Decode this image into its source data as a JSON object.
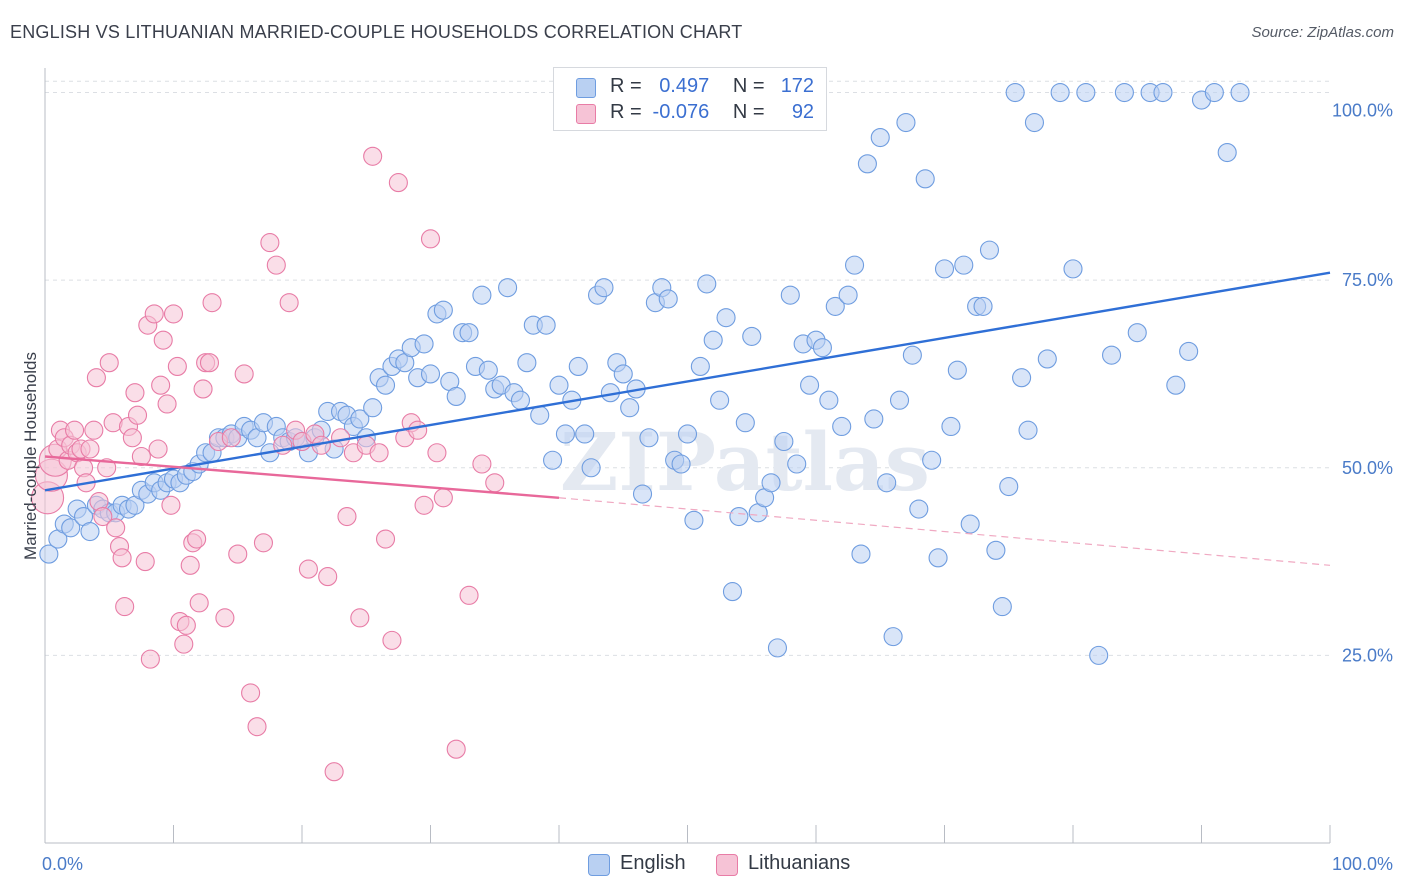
{
  "title": "ENGLISH VS LITHUANIAN MARRIED-COUPLE HOUSEHOLDS CORRELATION CHART",
  "source": "Source: ZipAtlas.com",
  "colors": {
    "english": "#6f9de0",
    "english_fill": "#b9d0f2",
    "lithuanian": "#e87ca6",
    "lithuanian_fill": "#f6c3d6",
    "tick_text": "#4a7bc8"
  },
  "legend": {
    "r_label": "R =",
    "n_label": "N =",
    "rows": [
      {
        "key": "english",
        "r": "0.497",
        "n": "172"
      },
      {
        "key": "lithuanian",
        "r": "-0.076",
        "n": "92"
      }
    ]
  },
  "bottom_legend": {
    "english": "English",
    "lithuanian": "Lithuanians"
  },
  "chart_data": {
    "type": "scatter",
    "ylabel": "Married-couple Households",
    "xlim": [
      0,
      100
    ],
    "ylim": [
      0,
      103
    ],
    "x_tick_labels": [
      "0.0%",
      "100.0%"
    ],
    "y_ticks": [
      25,
      50,
      75,
      100
    ],
    "y_tick_labels": [
      "25.0%",
      "50.0%",
      "75.0%",
      "100.0%"
    ],
    "grid": true,
    "watermark": "ZIPatlas",
    "trend_lines": [
      {
        "series": "English",
        "x": [
          0,
          100
        ],
        "y": [
          47.0,
          76.0
        ],
        "style": "solid"
      },
      {
        "series": "Lithuanians",
        "x": [
          0,
          40
        ],
        "y": [
          51.5,
          46.0
        ],
        "style": "solid"
      },
      {
        "series": "Lithuanians",
        "x": [
          40,
          100
        ],
        "y": [
          46.0,
          37.0
        ],
        "style": "dashed"
      }
    ],
    "series": [
      {
        "name": "English",
        "points": [
          [
            0.3,
            38.5
          ],
          [
            1,
            40.5
          ],
          [
            1.5,
            42.5
          ],
          [
            2,
            42
          ],
          [
            2.5,
            44.5
          ],
          [
            3,
            43.5
          ],
          [
            3.5,
            41.5
          ],
          [
            4,
            45
          ],
          [
            4.5,
            44.5
          ],
          [
            5,
            44
          ],
          [
            5.5,
            44
          ],
          [
            6,
            45
          ],
          [
            6.5,
            44.5
          ],
          [
            7,
            45
          ],
          [
            7.5,
            47
          ],
          [
            8,
            46.5
          ],
          [
            8.5,
            48
          ],
          [
            9,
            47
          ],
          [
            9.5,
            48
          ],
          [
            10,
            48.5
          ],
          [
            10.5,
            48
          ],
          [
            11,
            49
          ],
          [
            11.5,
            49.5
          ],
          [
            12,
            50.5
          ],
          [
            12.5,
            52
          ],
          [
            13,
            52
          ],
          [
            13.5,
            54
          ],
          [
            14,
            54
          ],
          [
            14.5,
            54.5
          ],
          [
            15,
            54
          ],
          [
            15.5,
            55.5
          ],
          [
            16,
            55
          ],
          [
            16.5,
            54
          ],
          [
            17,
            56
          ],
          [
            17.5,
            52
          ],
          [
            18,
            55.5
          ],
          [
            18.5,
            54
          ],
          [
            19,
            53.5
          ],
          [
            19.5,
            54
          ],
          [
            20,
            53.5
          ],
          [
            20.5,
            52
          ],
          [
            21,
            54
          ],
          [
            21.5,
            55
          ],
          [
            22,
            57.5
          ],
          [
            22.5,
            52.5
          ],
          [
            23,
            57.5
          ],
          [
            23.5,
            57
          ],
          [
            24,
            55.5
          ],
          [
            24.5,
            56.5
          ],
          [
            25,
            54
          ],
          [
            25.5,
            58
          ],
          [
            26,
            62
          ],
          [
            26.5,
            61
          ],
          [
            27,
            63.5
          ],
          [
            27.5,
            64.5
          ],
          [
            28,
            64
          ],
          [
            28.5,
            66
          ],
          [
            29,
            62
          ],
          [
            29.5,
            66.5
          ],
          [
            30,
            62.5
          ],
          [
            30.5,
            70.5
          ],
          [
            31,
            71
          ],
          [
            31.5,
            61.5
          ],
          [
            32,
            59.5
          ],
          [
            32.5,
            68
          ],
          [
            33,
            68
          ],
          [
            33.5,
            63.5
          ],
          [
            34,
            73
          ],
          [
            34.5,
            63
          ],
          [
            35,
            60.5
          ],
          [
            35.5,
            61
          ],
          [
            36,
            74
          ],
          [
            36.5,
            60
          ],
          [
            37,
            59
          ],
          [
            37.5,
            64
          ],
          [
            38,
            69
          ],
          [
            38.5,
            57
          ],
          [
            39,
            69
          ],
          [
            39.5,
            51
          ],
          [
            40,
            61
          ],
          [
            40.5,
            54.5
          ],
          [
            41,
            59
          ],
          [
            41.5,
            63.5
          ],
          [
            42,
            54.5
          ],
          [
            42.5,
            50
          ],
          [
            43,
            73
          ],
          [
            43.5,
            74
          ],
          [
            44,
            60
          ],
          [
            44.5,
            64
          ],
          [
            45,
            62.5
          ],
          [
            45.5,
            58
          ],
          [
            46,
            60.5
          ],
          [
            46.5,
            46.5
          ],
          [
            47,
            54
          ],
          [
            47.5,
            72
          ],
          [
            48,
            74
          ],
          [
            48.5,
            72.5
          ],
          [
            49,
            51
          ],
          [
            49.5,
            50.5
          ],
          [
            50,
            54.5
          ],
          [
            50.5,
            43
          ],
          [
            51,
            63.5
          ],
          [
            51.5,
            74.5
          ],
          [
            52,
            67
          ],
          [
            52.5,
            59
          ],
          [
            53,
            70
          ],
          [
            53.5,
            33.5
          ],
          [
            54,
            43.5
          ],
          [
            54.5,
            56
          ],
          [
            55,
            67.5
          ],
          [
            55.5,
            44
          ],
          [
            56,
            46
          ],
          [
            56.5,
            48
          ],
          [
            57,
            26
          ],
          [
            57.5,
            53.5
          ],
          [
            58,
            73
          ],
          [
            58.5,
            50.5
          ],
          [
            59,
            66.5
          ],
          [
            59.5,
            61
          ],
          [
            60,
            67
          ],
          [
            60.5,
            66
          ],
          [
            61,
            59
          ],
          [
            61.5,
            71.5
          ],
          [
            62,
            55.5
          ],
          [
            62.5,
            73
          ],
          [
            63,
            77
          ],
          [
            63.5,
            38.5
          ],
          [
            64,
            90.5
          ],
          [
            64.5,
            56.5
          ],
          [
            65,
            94
          ],
          [
            65.5,
            48
          ],
          [
            66,
            27.5
          ],
          [
            66.5,
            59
          ],
          [
            67,
            96
          ],
          [
            67.5,
            65
          ],
          [
            68,
            44.5
          ],
          [
            68.5,
            88.5
          ],
          [
            69,
            51
          ],
          [
            69.5,
            38
          ],
          [
            70,
            76.5
          ],
          [
            70.5,
            55.5
          ],
          [
            71,
            63
          ],
          [
            71.5,
            77
          ],
          [
            72,
            42.5
          ],
          [
            72.5,
            71.5
          ],
          [
            73,
            71.5
          ],
          [
            73.5,
            79
          ],
          [
            74,
            39
          ],
          [
            74.5,
            31.5
          ],
          [
            75,
            47.5
          ],
          [
            75.5,
            100
          ],
          [
            76,
            62
          ],
          [
            76.5,
            55
          ],
          [
            77,
            96
          ],
          [
            78,
            64.5
          ],
          [
            79,
            100
          ],
          [
            80,
            76.5
          ],
          [
            81,
            100
          ],
          [
            82,
            25
          ],
          [
            83,
            65
          ],
          [
            84,
            100
          ],
          [
            85,
            68
          ],
          [
            86,
            100
          ],
          [
            87,
            100
          ],
          [
            88,
            61
          ],
          [
            89,
            65.5
          ],
          [
            90,
            99
          ],
          [
            91,
            100
          ],
          [
            92,
            92
          ],
          [
            93,
            100
          ]
        ]
      },
      {
        "name": "Lithuanians",
        "points": [
          [
            0.2,
            46
          ],
          [
            0.5,
            49
          ],
          [
            0.8,
            51
          ],
          [
            1,
            52.5
          ],
          [
            1.2,
            55
          ],
          [
            1.5,
            54
          ],
          [
            1.8,
            51
          ],
          [
            2,
            53
          ],
          [
            2.3,
            55
          ],
          [
            2.5,
            52
          ],
          [
            2.8,
            52.5
          ],
          [
            3,
            50
          ],
          [
            3.2,
            48
          ],
          [
            3.5,
            52.5
          ],
          [
            3.8,
            55
          ],
          [
            4,
            62
          ],
          [
            4.2,
            45.5
          ],
          [
            4.5,
            43.5
          ],
          [
            4.8,
            50
          ],
          [
            5,
            64
          ],
          [
            5.3,
            56
          ],
          [
            5.5,
            42
          ],
          [
            5.8,
            39.5
          ],
          [
            6,
            38
          ],
          [
            6.2,
            31.5
          ],
          [
            6.5,
            55.5
          ],
          [
            6.8,
            54
          ],
          [
            7,
            60
          ],
          [
            7.2,
            57
          ],
          [
            7.5,
            51.5
          ],
          [
            7.8,
            37.5
          ],
          [
            8,
            69
          ],
          [
            8.2,
            24.5
          ],
          [
            8.5,
            70.5
          ],
          [
            8.8,
            52.5
          ],
          [
            9,
            61
          ],
          [
            9.2,
            67
          ],
          [
            9.5,
            58.5
          ],
          [
            9.8,
            45
          ],
          [
            10,
            70.5
          ],
          [
            10.3,
            63.5
          ],
          [
            10.5,
            29.5
          ],
          [
            10.8,
            26.5
          ],
          [
            11,
            29
          ],
          [
            11.3,
            37
          ],
          [
            11.5,
            40
          ],
          [
            11.8,
            40.5
          ],
          [
            12,
            32
          ],
          [
            12.3,
            60.5
          ],
          [
            12.5,
            64
          ],
          [
            12.8,
            64
          ],
          [
            13,
            72
          ],
          [
            13.5,
            53.5
          ],
          [
            14,
            30
          ],
          [
            14.5,
            54
          ],
          [
            15,
            38.5
          ],
          [
            15.5,
            62.5
          ],
          [
            16,
            20
          ],
          [
            16.5,
            15.5
          ],
          [
            17,
            40
          ],
          [
            17.5,
            80
          ],
          [
            18,
            77
          ],
          [
            18.5,
            53
          ],
          [
            19,
            72
          ],
          [
            19.5,
            55
          ],
          [
            20,
            53.5
          ],
          [
            20.5,
            36.5
          ],
          [
            21,
            54.5
          ],
          [
            21.5,
            53
          ],
          [
            22,
            35.5
          ],
          [
            22.5,
            9.5
          ],
          [
            23,
            54
          ],
          [
            23.5,
            43.5
          ],
          [
            24,
            52
          ],
          [
            24.5,
            30
          ],
          [
            25,
            53
          ],
          [
            25.5,
            91.5
          ],
          [
            26,
            52
          ],
          [
            26.5,
            40.5
          ],
          [
            27,
            27
          ],
          [
            27.5,
            88
          ],
          [
            28,
            54
          ],
          [
            28.5,
            56
          ],
          [
            29,
            55
          ],
          [
            29.5,
            45
          ],
          [
            30,
            80.5
          ],
          [
            30.5,
            52
          ],
          [
            31,
            46
          ],
          [
            32,
            12.5
          ],
          [
            33,
            33
          ],
          [
            34,
            50.5
          ],
          [
            35,
            48
          ]
        ]
      }
    ]
  }
}
